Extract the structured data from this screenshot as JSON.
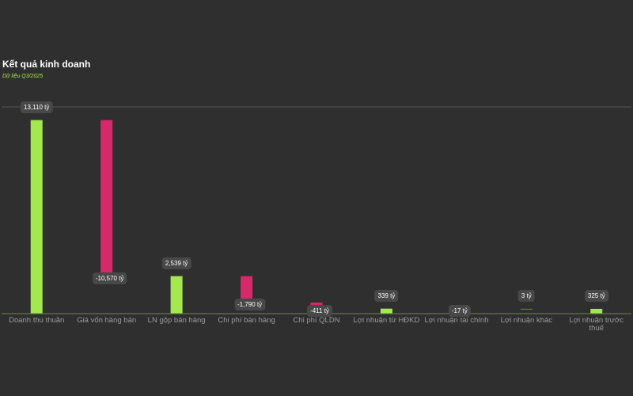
{
  "chart_data": {
    "type": "waterfall",
    "title": "Kết quả kinh doanh",
    "subtitle": "Dữ liệu Q3/2025",
    "categories": [
      "Doanh thu thuần",
      "Giá vốn hàng bán",
      "LN gộp bán hàng",
      "Chi phí bán hàng",
      "Chi phí QLDN",
      "Lợi nhuận từ HĐKD",
      "Lợi nhuận tài chính",
      "Lợi nhuận khác",
      "Lợi nhuận trước thuế"
    ],
    "values": [
      13110,
      -10570,
      2539,
      -1790,
      -411,
      339,
      -17,
      3,
      325
    ],
    "value_labels": [
      "13,110 tỷ",
      "-10,570 tỷ",
      "2,539 tỷ",
      "-1,790 tỷ",
      "-411 tỷ",
      "339 tỷ",
      "-17 tỷ",
      "3 tỷ",
      "325 tỷ"
    ],
    "measure": [
      "total",
      "relative",
      "total",
      "relative",
      "relative",
      "total",
      "relative",
      "relative",
      "total"
    ],
    "increase_color": "#a3e84f",
    "decrease_color": "#d6286a",
    "ylim": [
      0,
      14000
    ],
    "grid": true
  }
}
